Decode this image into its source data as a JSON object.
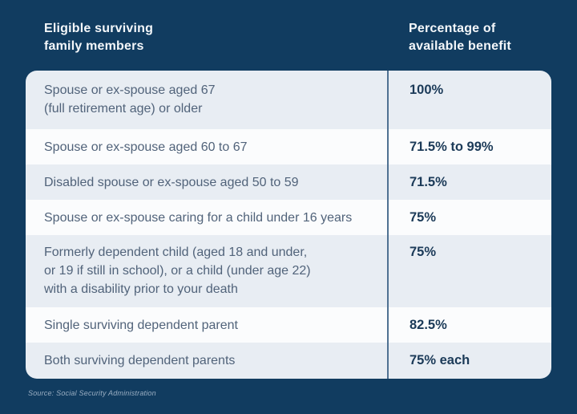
{
  "page": {
    "background_color": "#113C60",
    "accent_colors": {
      "row_light": "#E8EDF3",
      "row_white": "#FBFCFD",
      "divider": "#4F7192",
      "header_text": "#F4F7FA",
      "label_text": "#51637A",
      "value_text": "#1B3A58",
      "source_text": "#9AAEC2"
    }
  },
  "table": {
    "col1_header": "Eligible surviving\nfamily members",
    "col2_header": "Percentage of\navailable benefit",
    "rows": [
      {
        "label": "Spouse or ex-spouse aged 67\n(full retirement age) or older",
        "value": "100%"
      },
      {
        "label": "Spouse or ex-spouse aged 60 to 67",
        "value": "71.5% to 99%"
      },
      {
        "label": "Disabled spouse or ex-spouse aged 50 to 59",
        "value": "71.5%"
      },
      {
        "label": "Spouse or ex-spouse caring for a child under 16 years",
        "value": "75%"
      },
      {
        "label": "Formerly dependent child (aged 18 and under,\nor 19 if still in school), or a child (under age 22)\nwith a disability prior to your death",
        "value": "75%"
      },
      {
        "label": "Single surviving dependent parent",
        "value": "82.5%"
      },
      {
        "label": "Both surviving dependent parents",
        "value": "75% each"
      }
    ]
  },
  "source": "Source: Social Security Administration",
  "chart_data": {
    "type": "table",
    "title": "",
    "columns": [
      "Eligible surviving family members",
      "Percentage of available benefit"
    ],
    "rows": [
      [
        "Spouse or ex-spouse aged 67 (full retirement age) or older",
        "100%"
      ],
      [
        "Spouse or ex-spouse aged 60 to 67",
        "71.5% to 99%"
      ],
      [
        "Disabled spouse or ex-spouse aged 50 to 59",
        "71.5%"
      ],
      [
        "Spouse or ex-spouse caring for a child under 16 years",
        "75%"
      ],
      [
        "Formerly dependent child (aged 18 and under, or 19 if still in school), or a child (under age 22) with a disability prior to your death",
        "75%"
      ],
      [
        "Single surviving dependent parent",
        "82.5%"
      ],
      [
        "Both surviving dependent parents",
        "75% each"
      ]
    ],
    "source": "Source: Social Security Administration",
    "layout": "two-column table, alternating light/white row stripes on navy background, vertical divider between columns"
  }
}
